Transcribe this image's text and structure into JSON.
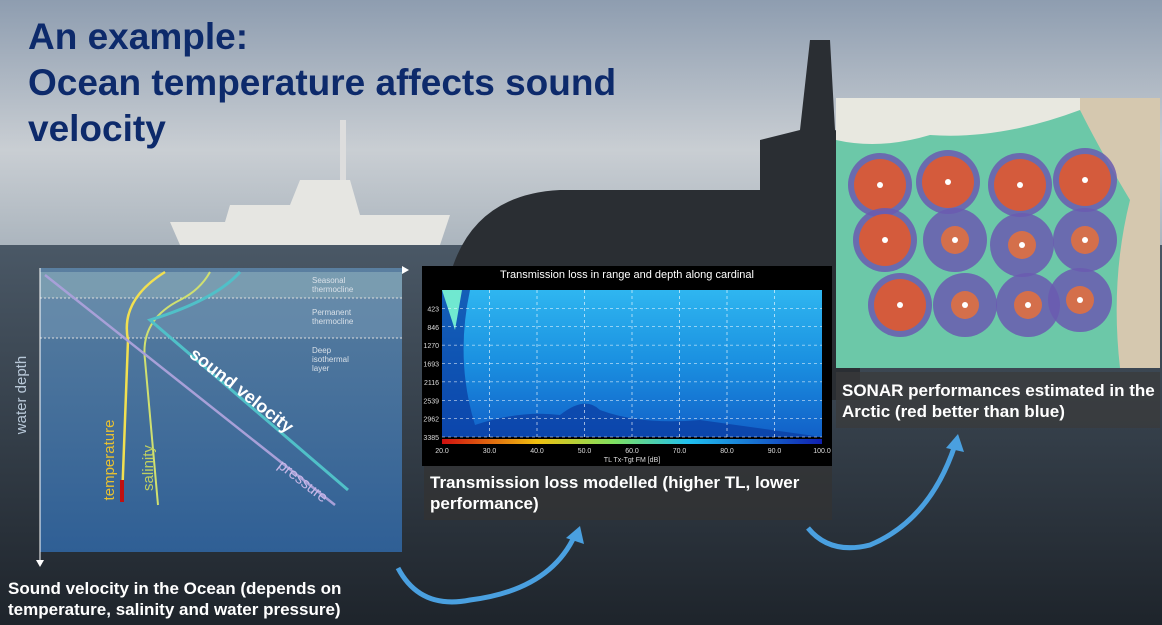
{
  "title": [
    "An example:",
    "Ocean temperature affects sound",
    "velocity"
  ],
  "diagram": {
    "layers": [
      "Seasonal thermocline",
      "Permanent thermocline",
      "Deep isothermal layer"
    ],
    "axis_label": "water depth",
    "curves": [
      "temperature",
      "salinity",
      "sound velocity",
      "pressure"
    ],
    "caption": "Sound velocity in the Ocean (depends on temperature, salinity and water pressure)"
  },
  "tl_chart": {
    "title": "Transmission loss in range and depth along cardinal",
    "depth_ticks": [
      "423",
      "846",
      "1270",
      "1693",
      "2116",
      "2539",
      "2962",
      "3385"
    ],
    "colorbar_ticks": [
      "20.0",
      "30.0",
      "40.0",
      "50.0",
      "60.0",
      "70.0",
      "80.0",
      "90.0",
      "100.0"
    ],
    "colorbar_label": "TL Tx-Tgt FM [dB]",
    "caption": "Transmission loss modelled (higher TL, lower performance)"
  },
  "map": {
    "caption": "SONAR performances estimated in the Arctic (red better than blue)"
  }
}
